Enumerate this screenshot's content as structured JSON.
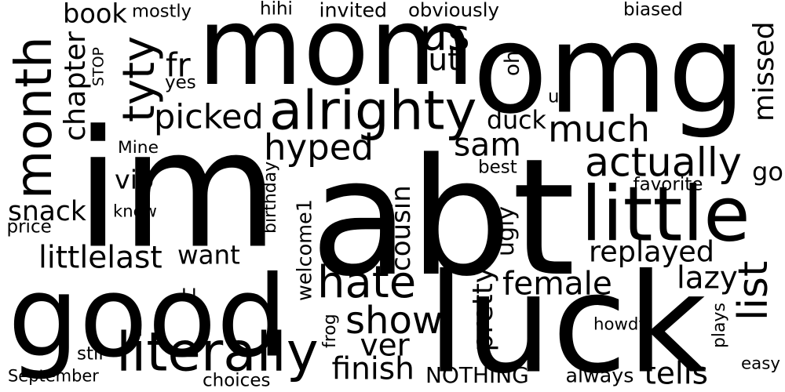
{
  "colors": {
    "background": "#ffffff",
    "text": "#000000"
  },
  "words": [
    {
      "text": "im"
    },
    {
      "text": "abt"
    },
    {
      "text": "omg"
    },
    {
      "text": "luck"
    },
    {
      "text": "good"
    },
    {
      "text": "mom"
    },
    {
      "text": "little"
    },
    {
      "text": "month"
    },
    {
      "text": "tyty"
    },
    {
      "text": "alrighty"
    },
    {
      "text": "literally"
    },
    {
      "text": "show"
    },
    {
      "text": "hate"
    },
    {
      "text": "list"
    },
    {
      "text": "much"
    },
    {
      "text": "missed"
    },
    {
      "text": "actually"
    },
    {
      "text": "hyped"
    },
    {
      "text": "picked"
    },
    {
      "text": "sam"
    },
    {
      "text": "us"
    },
    {
      "text": "cousin"
    },
    {
      "text": "female"
    },
    {
      "text": "replayed"
    },
    {
      "text": "pretty"
    },
    {
      "text": "chapter"
    },
    {
      "text": "welcome1"
    },
    {
      "text": "littlelast"
    },
    {
      "text": "want"
    },
    {
      "text": "ugly"
    },
    {
      "text": "snack"
    },
    {
      "text": "book"
    },
    {
      "text": "lazy"
    },
    {
      "text": "finish"
    },
    {
      "text": "easy"
    },
    {
      "text": "oh"
    },
    {
      "text": "duck"
    },
    {
      "text": "ver"
    },
    {
      "text": "tells"
    },
    {
      "text": "NOTHING"
    },
    {
      "text": "jut"
    },
    {
      "text": "fr"
    },
    {
      "text": "vip"
    },
    {
      "text": "go"
    },
    {
      "text": "howdy"
    },
    {
      "text": "plays"
    },
    {
      "text": "frog"
    },
    {
      "text": "September"
    },
    {
      "text": "always"
    },
    {
      "text": "choices"
    },
    {
      "text": "obviously"
    },
    {
      "text": "invited"
    },
    {
      "text": "biased"
    },
    {
      "text": "mostly"
    },
    {
      "text": "hihi"
    },
    {
      "text": "STOP"
    },
    {
      "text": "Mine"
    },
    {
      "text": "knew"
    },
    {
      "text": "price"
    },
    {
      "text": "birthday"
    },
    {
      "text": "best"
    },
    {
      "text": "favorite"
    },
    {
      "text": "stil"
    },
    {
      "text": "LI"
    },
    {
      "text": "yes"
    },
    {
      "text": "ur"
    }
  ]
}
